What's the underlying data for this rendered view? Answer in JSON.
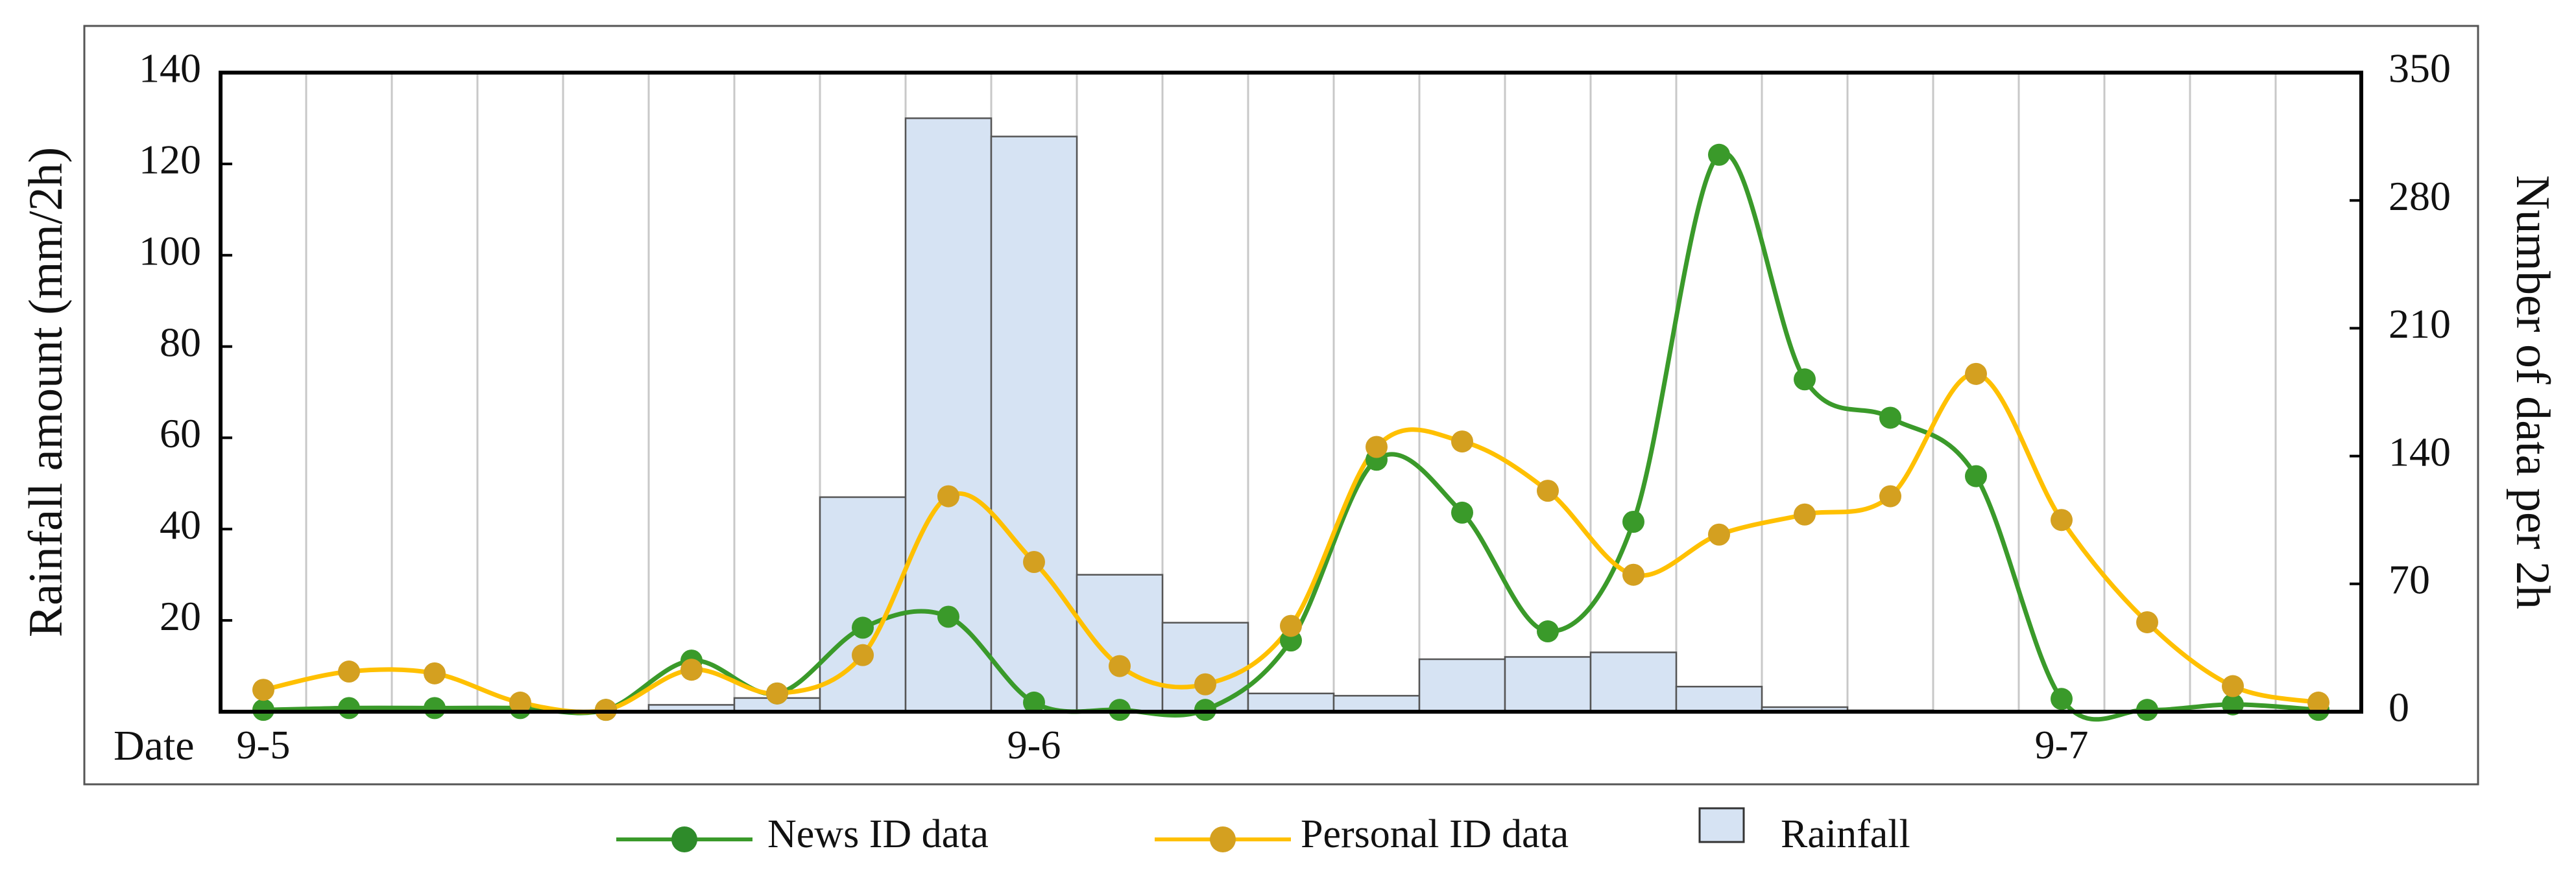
{
  "chart_data": {
    "type": "bar+line",
    "x_points": 25,
    "bar_centers_index_offset": -0.5,
    "date_axis_label": "Date",
    "date_ticks": [
      {
        "index": 0,
        "label": "9-5"
      },
      {
        "index": 9,
        "label": "9-6"
      },
      {
        "index": 21,
        "label": "9-7"
      }
    ],
    "ylabel_left": "Rainfall amount (mm/2h)",
    "ylabel_right": "Number of data per 2h",
    "ylim_left": [
      0,
      140
    ],
    "ylim_right": [
      0,
      350
    ],
    "yticks_left": [
      20,
      40,
      60,
      80,
      100,
      120,
      140
    ],
    "yticks_right": [
      0,
      70,
      140,
      210,
      280,
      350
    ],
    "grid": "vertical",
    "legend_position": "bottom",
    "series": [
      {
        "name": "Rainfall",
        "kind": "bar",
        "axis": "left",
        "color": "#d6e3f3",
        "values": [
          0,
          0,
          0,
          0,
          0,
          1.5,
          3,
          47,
          130,
          126,
          30,
          19.5,
          4,
          3.5,
          11.5,
          12,
          13,
          5.5,
          1,
          0.3,
          0,
          0,
          0,
          0,
          0
        ]
      },
      {
        "name": "News ID data",
        "kind": "line",
        "axis": "right",
        "color": "#3a9a2a",
        "values": [
          1,
          2,
          2,
          2,
          1,
          28,
          10,
          46,
          52,
          5,
          1,
          1,
          39,
          138,
          109,
          44,
          104,
          305,
          182,
          161,
          129,
          7,
          1,
          4,
          1
        ]
      },
      {
        "name": "Personal ID data",
        "kind": "line",
        "axis": "right",
        "color": "#ffc000",
        "marker_color": "#d4a020",
        "values": [
          12,
          22,
          21,
          5,
          1,
          23,
          10,
          31,
          118,
          82,
          25,
          15,
          47,
          145,
          148,
          121,
          75,
          97,
          108,
          118,
          185,
          105,
          49,
          14,
          5
        ]
      }
    ]
  }
}
